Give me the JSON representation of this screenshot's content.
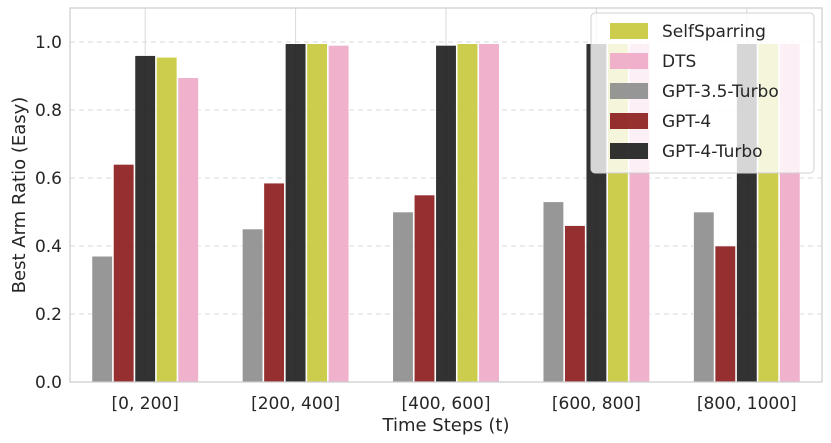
{
  "chart_data": {
    "type": "bar",
    "title": "",
    "xlabel": "Time Steps (t)",
    "ylabel": "Best Arm Ratio (Easy)",
    "ylim": [
      0,
      1.1
    ],
    "yticks": [
      "0.0",
      "0.2",
      "0.4",
      "0.6",
      "0.8",
      "1.0"
    ],
    "grid": true,
    "legend_position": "top-right",
    "categories": [
      "[0, 200]",
      "[200, 400]",
      "[400, 600]",
      "[600, 800]",
      "[800, 1000]"
    ],
    "series": [
      {
        "name": "GPT-3.5-Turbo",
        "color": "#8c8c8c",
        "values": [
          0.37,
          0.45,
          0.5,
          0.53,
          0.5
        ]
      },
      {
        "name": "GPT-4",
        "color": "#8b1a1a",
        "values": [
          0.64,
          0.585,
          0.55,
          0.46,
          0.4
        ]
      },
      {
        "name": "GPT-4-Turbo",
        "color": "#1c1c1c",
        "values": [
          0.96,
          0.995,
          0.99,
          0.995,
          0.995
        ]
      },
      {
        "name": "SelfSparring",
        "color": "#c8c83a",
        "values": [
          0.955,
          0.995,
          0.995,
          0.995,
          0.995
        ]
      },
      {
        "name": "DTS",
        "color": "#eea8c8",
        "values": [
          0.895,
          0.99,
          0.995,
          0.995,
          0.995
        ]
      }
    ],
    "legend_order": [
      "SelfSparring",
      "DTS",
      "GPT-3.5-Turbo",
      "GPT-4",
      "GPT-4-Turbo"
    ]
  }
}
